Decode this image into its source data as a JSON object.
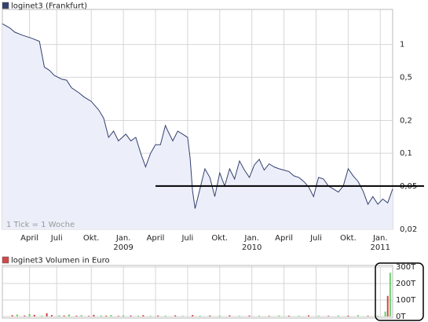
{
  "chart_data": [
    {
      "type": "area",
      "series": [
        {
          "name": "loginet3 (Frankfurt)",
          "color": "#34406e",
          "values": [
            1.55,
            1.42,
            1.3,
            1.22,
            1.14,
            1.07,
            0.62,
            0.58,
            0.52,
            0.48,
            0.47,
            0.4,
            0.36,
            0.33,
            0.3,
            0.25,
            0.21,
            0.14,
            0.16,
            0.13,
            0.15,
            0.13,
            0.14,
            0.1,
            0.075,
            0.1,
            0.12,
            0.12,
            0.18,
            0.16,
            0.13,
            0.16,
            0.15,
            0.14,
            0.09,
            0.045,
            0.031,
            0.047,
            0.072,
            0.06,
            0.04,
            0.066,
            0.05,
            0.072,
            0.058,
            0.085,
            0.07,
            0.06,
            0.078,
            0.088,
            0.07,
            0.08,
            0.075,
            0.072,
            0.07,
            0.068,
            0.062,
            0.06,
            0.055,
            0.049,
            0.04,
            0.06,
            0.058,
            0.05,
            0.047,
            0.044,
            0.05,
            0.072,
            0.062,
            0.055,
            0.045,
            0.034,
            0.04,
            0.034,
            0.038,
            0.035,
            0.047
          ]
        }
      ],
      "x": [
        0,
        3,
        5,
        8,
        12,
        15,
        17,
        19,
        21,
        24,
        26,
        28,
        31,
        33,
        36,
        39,
        41,
        43,
        45,
        47,
        50,
        52,
        54,
        56,
        58,
        60,
        62,
        64,
        66,
        67,
        69,
        71,
        73,
        75,
        76,
        77,
        78,
        80,
        82,
        84,
        86,
        88,
        90,
        92,
        94,
        96,
        98,
        100,
        102,
        104,
        106,
        108,
        110,
        112,
        114,
        116,
        118,
        120,
        122,
        124,
        126,
        128,
        130,
        132,
        134,
        136,
        138,
        140,
        142,
        144,
        146,
        148,
        150,
        152,
        154,
        156,
        158
      ],
      "fill_color": "#eceff9",
      "xlim": [
        0,
        158
      ],
      "xticks": [
        {
          "value": 11,
          "label": "April"
        },
        {
          "value": 22,
          "label": "Juli"
        },
        {
          "value": 36,
          "label": "Okt."
        },
        {
          "value": 49,
          "label": "Jan."
        },
        {
          "value": 62,
          "label": "April"
        },
        {
          "value": 75,
          "label": "Juli"
        },
        {
          "value": 88,
          "label": "Okt."
        },
        {
          "value": 101,
          "label": "Jan."
        },
        {
          "value": 114,
          "label": "April"
        },
        {
          "value": 127,
          "label": "Juli"
        },
        {
          "value": 140,
          "label": "Okt."
        },
        {
          "value": 153,
          "label": "Jan."
        }
      ],
      "year_labels": [
        {
          "value": 49,
          "label": "2009"
        },
        {
          "value": 101,
          "label": "2010"
        },
        {
          "value": 153,
          "label": "2011"
        }
      ],
      "ylim": [
        0.02,
        2.1
      ],
      "log_scale": true,
      "yticks": [
        {
          "value": 0.02,
          "label": "0,02"
        },
        {
          "value": 0.05,
          "label": "0,05"
        },
        {
          "value": 0.1,
          "label": "0,1"
        },
        {
          "value": 0.2,
          "label": "0,2"
        },
        {
          "value": 0.5,
          "label": "0,5"
        },
        1
      ],
      "grid": true,
      "annotation": "1 Tick = 1 Woche",
      "reference_line": {
        "value": 0.05,
        "x_start": 62
      }
    },
    {
      "type": "bar",
      "series": [
        {
          "name": "loginet3 Volumen in Euro",
          "color": "#d04848",
          "values": [
            8000,
            12000,
            6000,
            15000,
            10000,
            5000,
            20000,
            9000,
            7000,
            6000,
            12000,
            5000,
            8000,
            4000,
            10000,
            6000,
            5000,
            9000,
            4000,
            7000,
            6000,
            5000,
            8000,
            4000,
            6000,
            5000,
            7000,
            4000,
            9000,
            5000,
            6000,
            5000,
            7000,
            4000,
            6000,
            5000,
            4000,
            6000,
            5000,
            4000,
            7000,
            5000,
            4000,
            6000,
            5000,
            8000,
            4000,
            5000,
            30000,
            125000,
            265000
          ],
          "colors": [
            "#d04848",
            "#6ccf6c",
            "#d04848",
            "#6ccf6c",
            "#d04848",
            "#6ccf6c",
            "#d04848",
            "#d04848",
            "#6ccf6c",
            "#d04848",
            "#6ccf6c",
            "#d04848",
            "#6ccf6c",
            "#d04848",
            "#d04848",
            "#6ccf6c",
            "#d04848",
            "#6ccf6c",
            "#d04848",
            "#6ccf6c",
            "#d04848",
            "#6ccf6c",
            "#d04848",
            "#6ccf6c",
            "#d04848",
            "#6ccf6c",
            "#d04848",
            "#6ccf6c",
            "#d04848",
            "#6ccf6c",
            "#d04848",
            "#6ccf6c",
            "#d04848",
            "#6ccf6c",
            "#d04848",
            "#6ccf6c",
            "#d04848",
            "#6ccf6c",
            "#d04848",
            "#6ccf6c",
            "#d04848",
            "#6ccf6c",
            "#d04848",
            "#6ccf6c",
            "#d04848",
            "#6ccf6c",
            "#d04848",
            "#6ccf6c",
            "#6ccf6c",
            "#d04848",
            "#6ccf6c"
          ]
        }
      ],
      "x": [
        4,
        6,
        9,
        11,
        13,
        16,
        18,
        20,
        23,
        25,
        27,
        30,
        32,
        35,
        37,
        40,
        42,
        44,
        47,
        49,
        52,
        55,
        57,
        60,
        63,
        66,
        70,
        73,
        77,
        80,
        84,
        88,
        92,
        96,
        100,
        104,
        108,
        112,
        116,
        120,
        124,
        128,
        132,
        136,
        140,
        144,
        148,
        152,
        155,
        156,
        157
      ],
      "xlim": [
        0,
        158
      ],
      "ylim": [
        0,
        300000
      ],
      "yticks": [
        {
          "value": 0,
          "label": "0T"
        },
        {
          "value": 100000,
          "label": "100T"
        },
        {
          "value": 200000,
          "label": "200T"
        },
        {
          "value": 300000,
          "label": "300T"
        }
      ],
      "grid": true
    }
  ]
}
